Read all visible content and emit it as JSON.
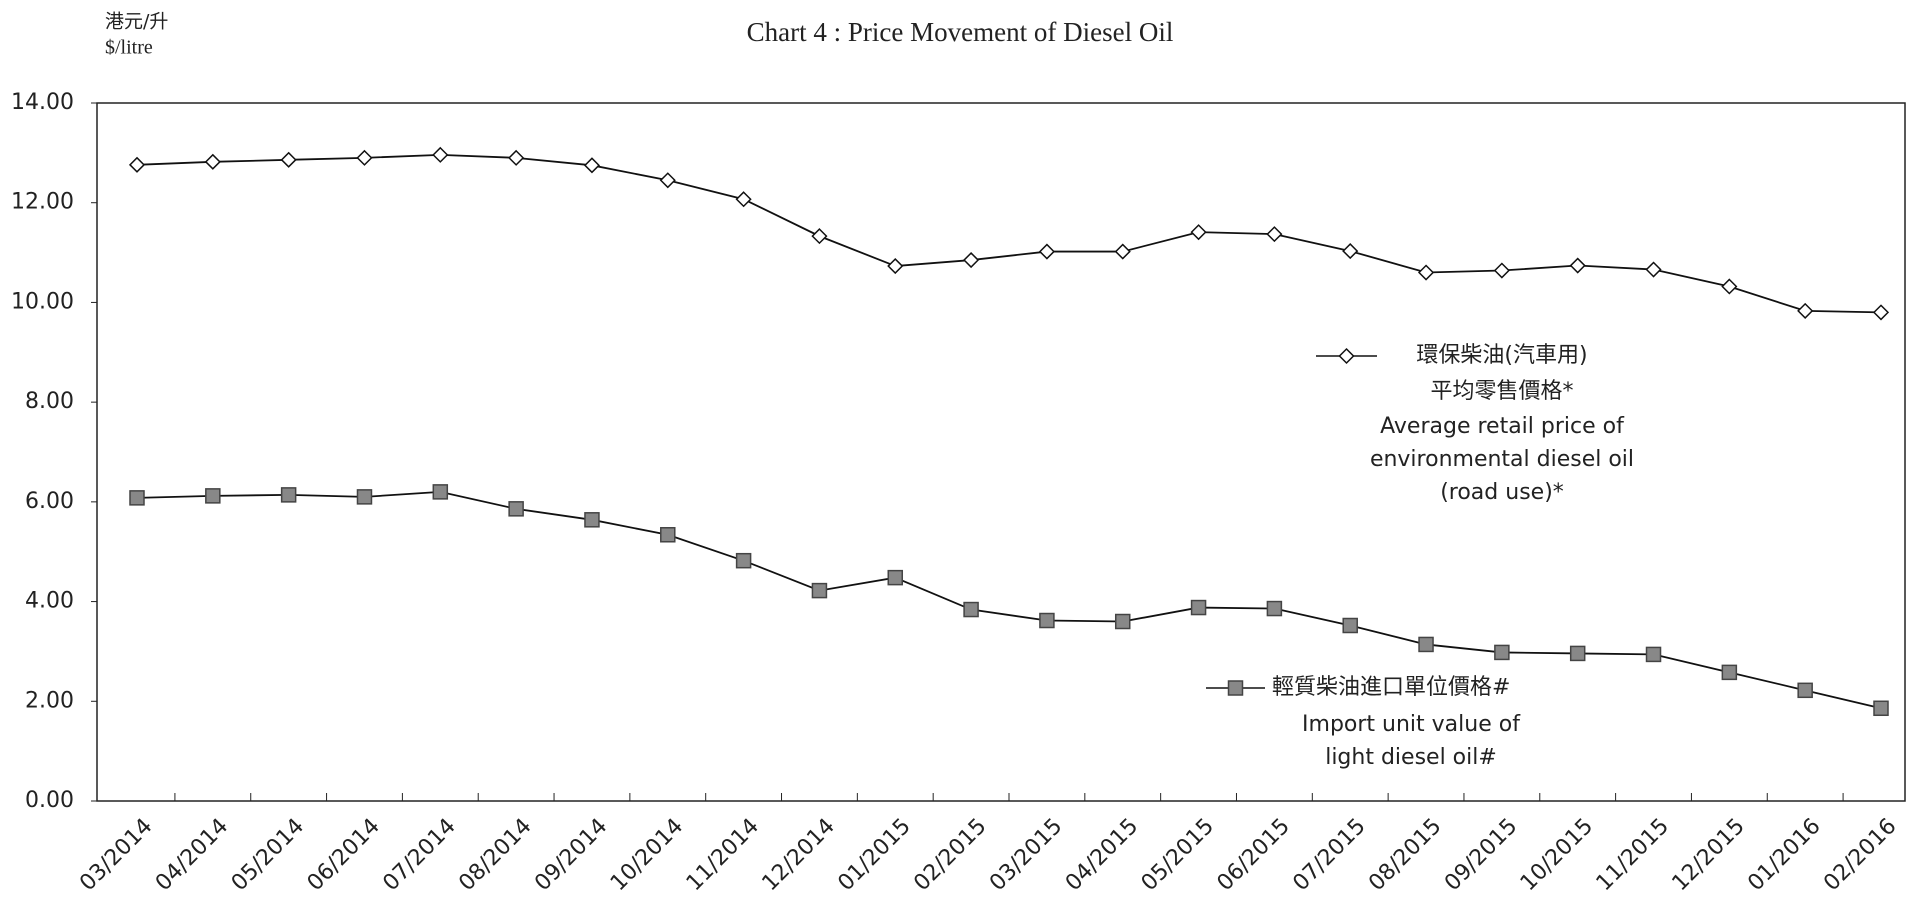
{
  "chart_data": {
    "type": "line",
    "title": "Chart 4 : Price Movement of Diesel Oil",
    "y_axis_label": [
      "港元/升",
      "$/litre"
    ],
    "categories": [
      "03/2014",
      "04/2014",
      "05/2014",
      "06/2014",
      "07/2014",
      "08/2014",
      "09/2014",
      "10/2014",
      "11/2014",
      "12/2014",
      "01/2015",
      "02/2015",
      "03/2015",
      "04/2015",
      "05/2015",
      "06/2015",
      "07/2015",
      "08/2015",
      "09/2015",
      "10/2015",
      "11/2015",
      "12/2015",
      "01/2016",
      "02/2016"
    ],
    "series": [
      {
        "name": [
          "環保柴油(汽車用)",
          "平均零售價格*",
          "Average retail price of",
          "environmental diesel oil",
          "(road use)*"
        ],
        "color": "#111111",
        "marker": "diamond",
        "values": [
          12.76,
          12.82,
          12.86,
          12.9,
          12.96,
          12.9,
          12.75,
          12.45,
          12.07,
          11.33,
          10.73,
          10.85,
          11.02,
          11.02,
          11.41,
          11.37,
          11.03,
          10.6,
          10.64,
          10.74,
          10.66,
          10.32,
          9.83,
          9.8
        ]
      },
      {
        "name": [
          "輕質柴油進口單位價格#",
          "Import unit value of",
          "light diesel oil#"
        ],
        "color": "#111111",
        "marker": "square",
        "values": [
          6.08,
          6.12,
          6.14,
          6.1,
          6.2,
          5.86,
          5.64,
          5.34,
          4.82,
          4.22,
          4.48,
          3.84,
          3.62,
          3.6,
          3.88,
          3.86,
          3.52,
          3.14,
          2.98,
          2.96,
          2.94,
          2.58,
          2.22,
          1.86
        ]
      }
    ],
    "ylim": [
      0,
      14
    ],
    "yticks": [
      {
        "value": 0,
        "label": "0.00"
      },
      {
        "value": 2,
        "label": "2.00"
      },
      {
        "value": 4,
        "label": "4.00"
      },
      {
        "value": 6,
        "label": "6.00"
      },
      {
        "value": 8,
        "label": "8.00"
      },
      {
        "value": 10,
        "label": "10.00"
      },
      {
        "value": 12,
        "label": "12.00"
      },
      {
        "value": 14,
        "label": "14.00"
      }
    ]
  }
}
